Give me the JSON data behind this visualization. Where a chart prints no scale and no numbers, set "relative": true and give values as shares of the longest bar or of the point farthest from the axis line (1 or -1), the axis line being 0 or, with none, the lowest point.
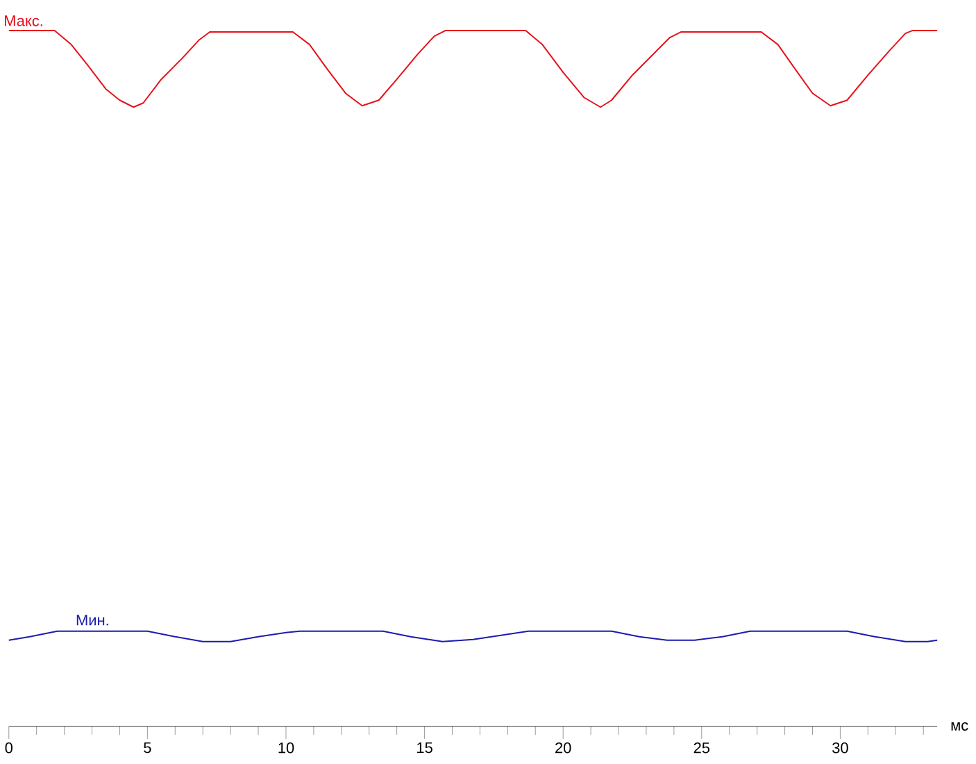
{
  "chart_data": {
    "type": "line",
    "relative": true,
    "xlabel": "мс",
    "xlim": [
      0,
      33.5
    ],
    "xticks": [
      0,
      {
        "value": 1,
        "label": null
      },
      {
        "value": 2,
        "label": null
      },
      {
        "value": 3,
        "label": null
      },
      {
        "value": 4,
        "label": null
      },
      5,
      {
        "value": 6,
        "label": null
      },
      {
        "value": 7,
        "label": null
      },
      {
        "value": 8,
        "label": null
      },
      {
        "value": 9,
        "label": null
      },
      10,
      {
        "value": 11,
        "label": null
      },
      {
        "value": 12,
        "label": null
      },
      {
        "value": 13,
        "label": null
      },
      {
        "value": 14,
        "label": null
      },
      15,
      {
        "value": 16,
        "label": null
      },
      {
        "value": 17,
        "label": null
      },
      {
        "value": 18,
        "label": null
      },
      {
        "value": 19,
        "label": null
      },
      20,
      {
        "value": 21,
        "label": null
      },
      {
        "value": 22,
        "label": null
      },
      {
        "value": 23,
        "label": null
      },
      {
        "value": 24,
        "label": null
      },
      25,
      {
        "value": 26,
        "label": null
      },
      {
        "value": 27,
        "label": null
      },
      {
        "value": 28,
        "label": null
      },
      {
        "value": 29,
        "label": null
      },
      30,
      {
        "value": 31,
        "label": null
      },
      {
        "value": 32,
        "label": null
      },
      {
        "value": 33,
        "label": null
      }
    ],
    "series": [
      {
        "name": "Макс.",
        "color": "#e8101a",
        "x": [
          0,
          1.65,
          2.25,
          2.85,
          3.5,
          4.0,
          4.5,
          4.85,
          5.5,
          6.25,
          6.85,
          7.25,
          7.75,
          10.25,
          10.85,
          11.5,
          12.15,
          12.75,
          13.35,
          14.0,
          14.75,
          15.35,
          15.75,
          18.65,
          19.25,
          20.0,
          20.75,
          21.35,
          21.75,
          22.5,
          23.25,
          23.85,
          24.25,
          27.15,
          27.75,
          28.35,
          29.0,
          29.65,
          30.25,
          31.0,
          31.75,
          32.35,
          32.6,
          33.5
        ],
        "values": [
          1,
          1,
          0.98,
          0.95,
          0.916,
          0.9,
          0.89,
          0.896,
          0.93,
          0.96,
          0.986,
          0.998,
          0.998,
          0.998,
          0.98,
          0.944,
          0.91,
          0.892,
          0.9,
          0.93,
          0.966,
          0.992,
          1,
          1,
          0.98,
          0.94,
          0.904,
          0.89,
          0.9,
          0.936,
          0.966,
          0.99,
          0.998,
          0.998,
          0.98,
          0.946,
          0.91,
          0.892,
          0.9,
          0.936,
          0.97,
          0.996,
          1,
          1
        ]
      },
      {
        "name": "Мин.",
        "color": "#1c1cb0",
        "x": [
          0,
          0.75,
          1.75,
          5.0,
          6.0,
          7.0,
          8.0,
          9.0,
          10.0,
          10.5,
          13.5,
          14.5,
          15.65,
          16.75,
          17.75,
          18.75,
          21.75,
          22.75,
          23.75,
          24.75,
          25.75,
          26.75,
          30.25,
          31.25,
          32.35,
          33.15,
          33.5
        ],
        "values": [
          0.124,
          0.129,
          0.137,
          0.137,
          0.129,
          0.122,
          0.122,
          0.129,
          0.135,
          0.137,
          0.137,
          0.129,
          0.122,
          0.125,
          0.131,
          0.137,
          0.137,
          0.129,
          0.124,
          0.124,
          0.129,
          0.137,
          0.137,
          0.129,
          0.122,
          0.122,
          0.124
        ]
      }
    ]
  }
}
